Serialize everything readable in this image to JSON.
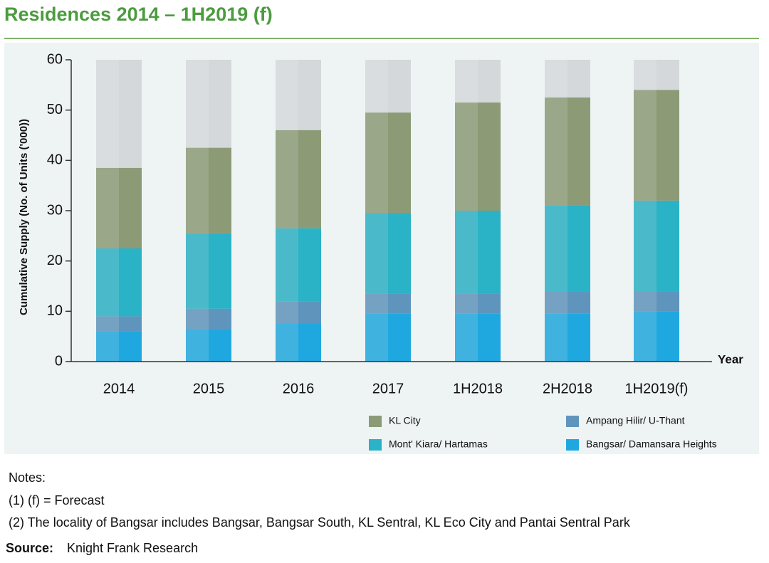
{
  "chart_data": {
    "type": "stacked-bar",
    "title": "Residences 2014 – 1H2019 (f)",
    "y_label": "Cumulative Supply (No. of Units ('000))",
    "x_label": "Year",
    "categories": [
      "2014",
      "2015",
      "2016",
      "2017",
      "1H2018",
      "2H2018",
      "1H2019(f)"
    ],
    "series": [
      {
        "name": "Bangsar/ Damansara Heights",
        "color": "#1fa8df",
        "values": [
          6,
          6.5,
          7.5,
          9.5,
          9.5,
          9.5,
          10
        ]
      },
      {
        "name": "Ampang Hilir/ U-Thant",
        "color": "#5f95bd",
        "values": [
          3,
          4,
          4.5,
          4,
          4,
          4.5,
          4
        ]
      },
      {
        "name": "Mont' Kiara/ Hartamas",
        "color": "#2ab2c6",
        "values": [
          13.5,
          15,
          14.5,
          16,
          16.5,
          17,
          18
        ]
      },
      {
        "name": "KL City",
        "color": "#8c9b76",
        "values": [
          16,
          17,
          19.5,
          20,
          21.5,
          21.5,
          22
        ]
      }
    ],
    "ylim": [
      0,
      60
    ],
    "yticks": [
      0,
      10,
      20,
      30,
      40,
      50,
      60
    ]
  },
  "notes": {
    "heading": "Notes:",
    "items": [
      "(1) (f) = Forecast",
      "(2) The locality of Bangsar includes Bangsar, Bangsar South, KL Sentral, KL Eco City and Pantai Sentral Park"
    ]
  },
  "source": {
    "label": "Source:",
    "text": "Knight Frank Research"
  }
}
